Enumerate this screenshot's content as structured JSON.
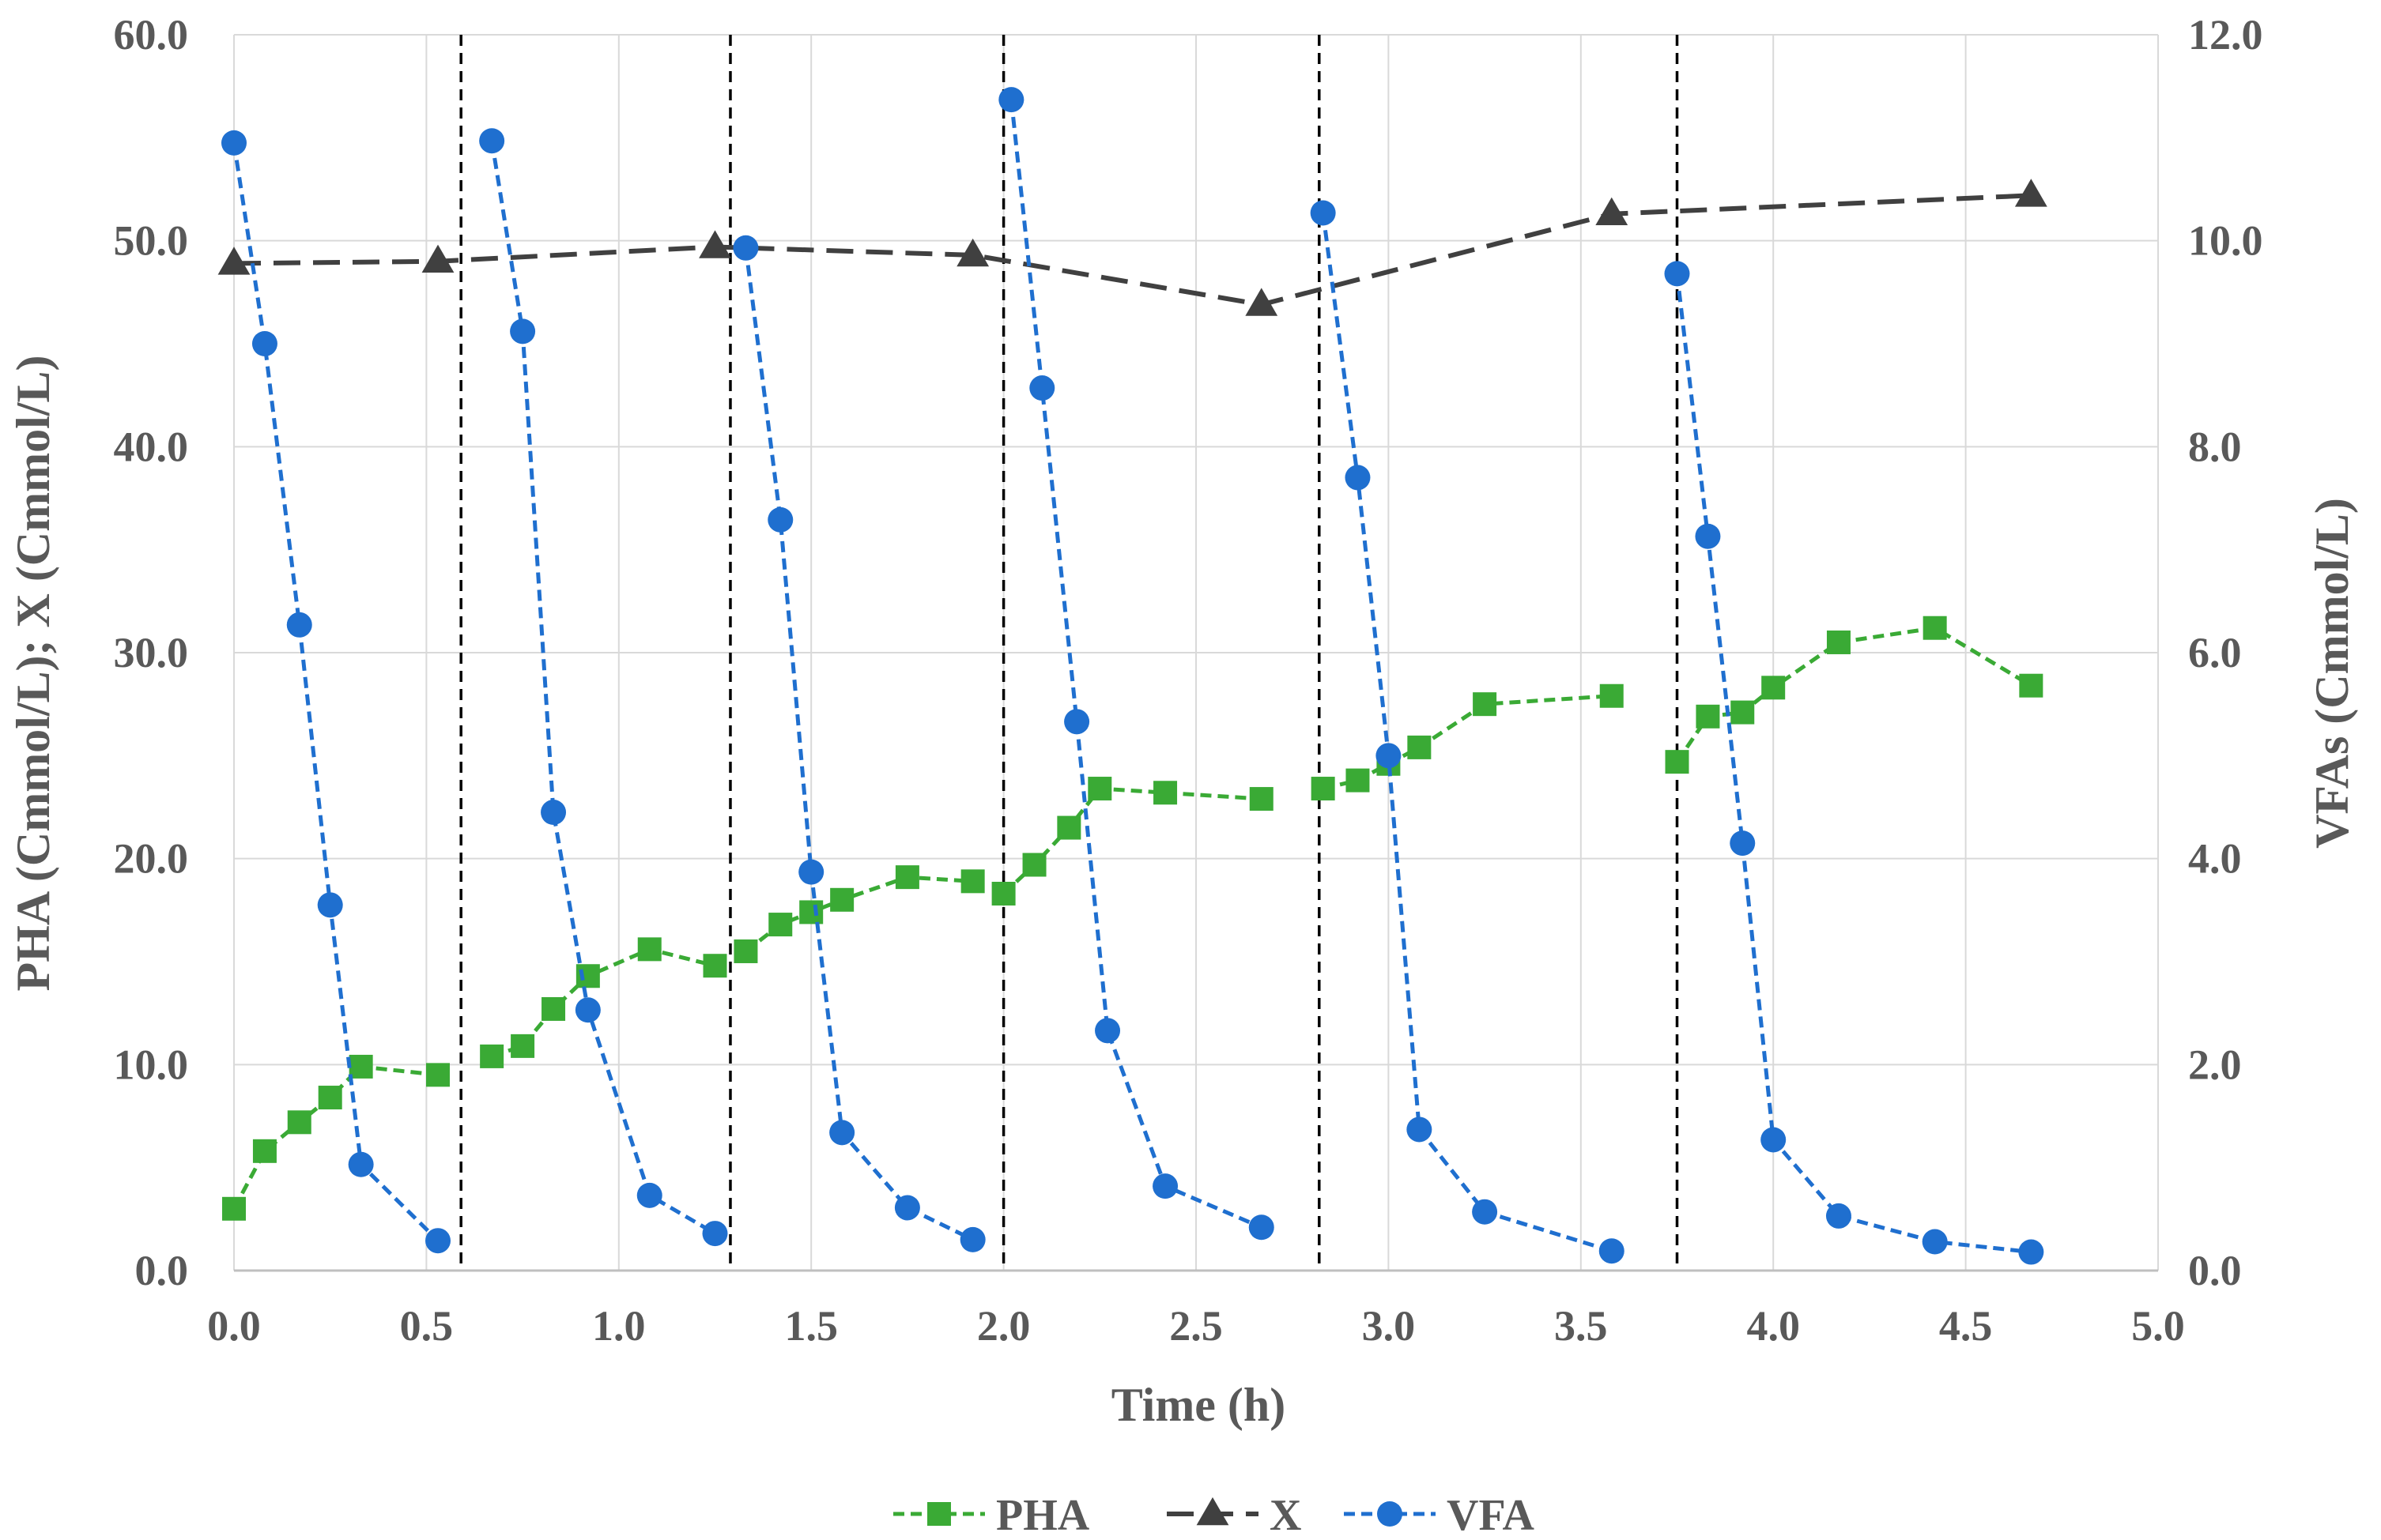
{
  "chart_data": {
    "type": "line",
    "title": "",
    "xlabel": "Time (h)",
    "ylabel_left": "PHA (Cmmol/L); X (Cmmol/L)",
    "ylabel_right": "VFAs (Cmmol/L)",
    "xlim": [
      0,
      5
    ],
    "ylim_left": [
      0,
      60
    ],
    "ylim_right": [
      0,
      12
    ],
    "grid": true,
    "legend": "bottom",
    "x_ticks": [
      "0.0",
      "0.5",
      "1.0",
      "1.5",
      "2.0",
      "2.5",
      "3.0",
      "3.5",
      "4.0",
      "4.5",
      "5.0"
    ],
    "y_left_ticks": [
      "0.0",
      "10.0",
      "20.0",
      "30.0",
      "40.0",
      "50.0",
      "60.0"
    ],
    "y_right_ticks": [
      "0.0",
      "2.0",
      "4.0",
      "6.0",
      "8.0",
      "10.0",
      "12.0"
    ],
    "vertical_lines_x": [
      0.59,
      1.29,
      2.0,
      2.82,
      3.75
    ],
    "series": [
      {
        "name": "PHA",
        "axis": "left",
        "color": "#3aaa35",
        "marker": "square",
        "segments": [
          [
            [
              0.0,
              3.0
            ],
            [
              0.08,
              5.8
            ],
            [
              0.17,
              7.2
            ],
            [
              0.25,
              8.4
            ],
            [
              0.33,
              9.9
            ],
            [
              0.53,
              9.5
            ]
          ],
          [
            [
              0.67,
              10.4
            ],
            [
              0.75,
              10.9
            ],
            [
              0.83,
              12.7
            ],
            [
              0.92,
              14.3
            ],
            [
              1.08,
              15.6
            ],
            [
              1.25,
              14.8
            ]
          ],
          [
            [
              1.33,
              15.5
            ],
            [
              1.42,
              16.8
            ],
            [
              1.5,
              17.4
            ],
            [
              1.58,
              18.0
            ],
            [
              1.75,
              19.1
            ],
            [
              1.92,
              18.9
            ]
          ],
          [
            [
              2.0,
              18.3
            ],
            [
              2.08,
              19.7
            ],
            [
              2.17,
              21.5
            ],
            [
              2.25,
              23.4
            ],
            [
              2.42,
              23.2
            ],
            [
              2.67,
              22.9
            ]
          ],
          [
            [
              2.83,
              23.4
            ],
            [
              2.92,
              23.8
            ],
            [
              3.0,
              24.6
            ],
            [
              3.08,
              25.4
            ],
            [
              3.25,
              27.5
            ],
            [
              3.58,
              27.9
            ]
          ],
          [
            [
              3.75,
              24.7
            ],
            [
              3.83,
              26.9
            ],
            [
              3.92,
              27.1
            ],
            [
              4.0,
              28.3
            ],
            [
              4.17,
              30.5
            ],
            [
              4.42,
              31.2
            ],
            [
              4.67,
              28.4
            ]
          ]
        ]
      },
      {
        "name": "X",
        "axis": "left",
        "color": "#404040",
        "marker": "triangle",
        "segments": [
          [
            [
              0.0,
              48.9
            ],
            [
              0.53,
              49.0
            ],
            [
              1.25,
              49.7
            ],
            [
              1.92,
              49.3
            ],
            [
              2.67,
              46.9
            ],
            [
              3.58,
              51.3
            ],
            [
              4.67,
              52.2
            ]
          ]
        ]
      },
      {
        "name": "VFA",
        "axis": "right",
        "color": "#1f6fcf",
        "marker": "circle",
        "segments": [
          [
            [
              0.0,
              10.95
            ],
            [
              0.08,
              9.0
            ],
            [
              0.17,
              6.27
            ],
            [
              0.25,
              3.55
            ],
            [
              0.33,
              1.03
            ],
            [
              0.53,
              0.29
            ]
          ],
          [
            [
              0.67,
              10.97
            ],
            [
              0.75,
              9.12
            ],
            [
              0.83,
              4.45
            ],
            [
              0.92,
              2.53
            ],
            [
              1.08,
              0.73
            ],
            [
              1.25,
              0.36
            ]
          ],
          [
            [
              1.33,
              9.93
            ],
            [
              1.42,
              7.29
            ],
            [
              1.5,
              3.87
            ],
            [
              1.58,
              1.34
            ],
            [
              1.75,
              0.61
            ],
            [
              1.92,
              0.3
            ]
          ],
          [
            [
              2.02,
              11.37
            ],
            [
              2.1,
              8.57
            ],
            [
              2.19,
              5.33
            ],
            [
              2.27,
              2.33
            ],
            [
              2.42,
              0.82
            ],
            [
              2.67,
              0.42
            ]
          ],
          [
            [
              2.83,
              10.27
            ],
            [
              2.92,
              7.7
            ],
            [
              3.0,
              5.0
            ],
            [
              3.08,
              1.37
            ],
            [
              3.25,
              0.57
            ],
            [
              3.58,
              0.19
            ]
          ],
          [
            [
              3.75,
              9.68
            ],
            [
              3.83,
              7.13
            ],
            [
              3.92,
              4.15
            ],
            [
              4.0,
              1.27
            ],
            [
              4.17,
              0.53
            ],
            [
              4.42,
              0.28
            ],
            [
              4.67,
              0.18
            ]
          ]
        ]
      }
    ]
  }
}
